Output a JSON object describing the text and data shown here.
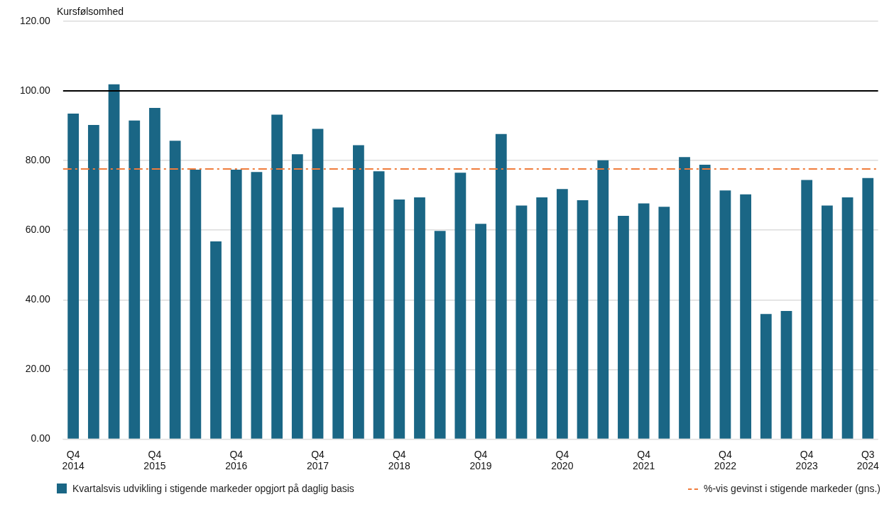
{
  "chart_data": {
    "type": "bar",
    "ylabel": "Kursfølsomhed",
    "categories": [
      "Q4 2014",
      null,
      null,
      null,
      "Q4 2015",
      null,
      null,
      null,
      "Q4 2016",
      null,
      null,
      null,
      "Q4 2017",
      null,
      null,
      null,
      "Q4 2018",
      null,
      null,
      null,
      "Q4 2019",
      null,
      null,
      null,
      "Q4 2020",
      null,
      null,
      null,
      "Q4 2021",
      null,
      null,
      null,
      "Q4 2022",
      null,
      null,
      null,
      "Q4 2023",
      null,
      null,
      "Q3 2024"
    ],
    "series": [
      {
        "name": "Kvartalsvis udvikling i stigende markeder opgjort på daglig basis",
        "color": "#1a6685",
        "values": [
          93.5,
          90.2,
          101.9,
          91.5,
          95.1,
          85.7,
          77.4,
          56.8,
          77.4,
          76.7,
          93.2,
          81.8,
          89.1,
          66.5,
          84.4,
          76.9,
          68.8,
          69.4,
          59.8,
          76.5,
          61.8,
          87.6,
          67.1,
          69.4,
          71.8,
          68.6,
          80.1,
          64.1,
          67.7,
          66.7,
          81.0,
          78.8,
          71.4,
          70.3,
          35.9,
          36.8,
          74.4,
          67.1,
          69.4,
          75.0
        ]
      }
    ],
    "ylim": [
      0,
      120
    ],
    "yticks": [
      {
        "value": 0,
        "label": "0.00"
      },
      {
        "value": 20,
        "label": "20.00"
      },
      {
        "value": 40,
        "label": "40.00"
      },
      {
        "value": 60,
        "label": "60.00"
      },
      {
        "value": 80,
        "label": "80.00"
      },
      {
        "value": 100,
        "label": "100.00"
      },
      {
        "value": 120,
        "label": "120.00"
      }
    ],
    "ref_lines": [
      {
        "axis": "y",
        "value": 100,
        "color": "#000000",
        "line_style": "solid"
      },
      {
        "axis": "y",
        "value": 77.6,
        "label": "%-vis gevinst i stigende markeder (gns.)",
        "color": "#f07c3c",
        "line_style": "dashed"
      }
    ],
    "grid": "y",
    "legend": "bottom"
  }
}
